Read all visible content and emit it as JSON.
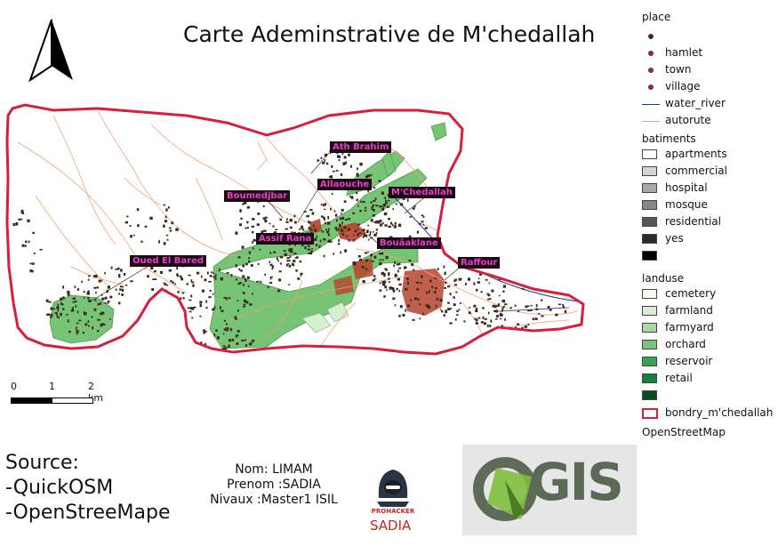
{
  "title": "Carte Ademinstrative de M'chedallah",
  "place_labels": [
    {
      "id": "ath-brahim",
      "text": "Ath Brahim"
    },
    {
      "id": "allaouche",
      "text": "Allaouche"
    },
    {
      "id": "boumedjbar",
      "text": "Boumedjbar"
    },
    {
      "id": "mchedallah",
      "text": "M'Chedallah"
    },
    {
      "id": "assif-rana",
      "text": "Assif Rana"
    },
    {
      "id": "bouaaklane",
      "text": "Bouâaklane"
    },
    {
      "id": "oued-el-bared",
      "text": "Oued El Bared"
    },
    {
      "id": "raffour",
      "text": "Raffour"
    }
  ],
  "scale_bar": {
    "labels": [
      "0",
      "1",
      "2 km"
    ]
  },
  "legend": {
    "place": {
      "heading": "place",
      "items": [
        {
          "label": "",
          "color": "#5a1020"
        },
        {
          "label": "hamlet",
          "color": "#b01e2e"
        },
        {
          "label": "town",
          "color": "#b01e2e"
        },
        {
          "label": "village",
          "color": "#b01e2e"
        }
      ]
    },
    "lines": [
      {
        "label": "water_river",
        "color": "#1f3c8f"
      },
      {
        "label": "autorute",
        "color": "#f4a070"
      }
    ],
    "batiments": {
      "heading": "batiments",
      "items": [
        {
          "label": "apartments",
          "color": "#ffffff"
        },
        {
          "label": "commercial",
          "color": "#d4d4d4"
        },
        {
          "label": "hospital",
          "color": "#a9a9a9"
        },
        {
          "label": "mosque",
          "color": "#878787"
        },
        {
          "label": "residential",
          "color": "#565656"
        },
        {
          "label": "yes",
          "color": "#2b2b2b"
        },
        {
          "label": "",
          "color": "#000000"
        }
      ]
    },
    "landuse": {
      "heading": "landuse",
      "items": [
        {
          "label": "cemetery",
          "color": "#f6fbf2"
        },
        {
          "label": "farmland",
          "color": "#d6efcf"
        },
        {
          "label": "farmyard",
          "color": "#a9dba0"
        },
        {
          "label": "orchard",
          "color": "#78c476"
        },
        {
          "label": "reservoir",
          "color": "#3ca251"
        },
        {
          "label": "retail",
          "color": "#16803a"
        },
        {
          "label": "",
          "color": "#0b4a1c"
        }
      ]
    },
    "boundary": {
      "label": "bondry_m'chedallah",
      "color": "#d81e3c"
    },
    "attribution": "OpenStreetMap"
  },
  "source": {
    "lines": [
      "Source:",
      "-QuickOSM",
      "-OpenStreeMape"
    ]
  },
  "author": {
    "lines": [
      "Nom: LIMAM",
      "Prenom :SADIA",
      "Nivaux :Master1 ISIL"
    ]
  },
  "logos": {
    "prohacker": "PROHACKER",
    "sadia": "SADIA",
    "qgis": "QGIS"
  },
  "colors": {
    "boundary": "#d81e3c",
    "orchard": "#78c476",
    "roads": "#f4a070",
    "river": "#1f3c8f",
    "buildings": "#3a2a20",
    "residential_red": "#b5432c"
  }
}
